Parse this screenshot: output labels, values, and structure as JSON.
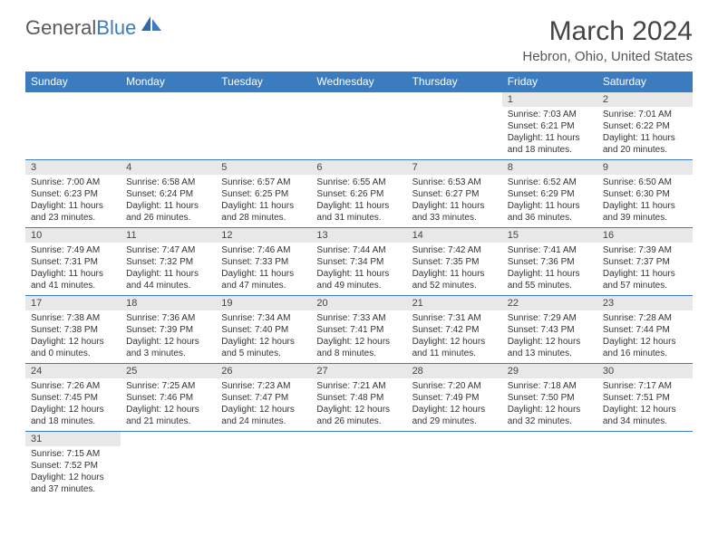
{
  "logo": {
    "general": "General",
    "blue": "Blue"
  },
  "title": "March 2024",
  "location": "Hebron, Ohio, United States",
  "colors": {
    "header_bg": "#3b7bbf",
    "header_text": "#ffffff",
    "daynum_bg": "#e8e8e8",
    "border": "#3b7bbf",
    "text": "#333333",
    "logo_gray": "#5a5a5a",
    "logo_blue": "#3b7bbf"
  },
  "weekdays": [
    "Sunday",
    "Monday",
    "Tuesday",
    "Wednesday",
    "Thursday",
    "Friday",
    "Saturday"
  ],
  "weeks": [
    [
      {
        "n": "",
        "sr": "",
        "ss": "",
        "d1": "",
        "d2": ""
      },
      {
        "n": "",
        "sr": "",
        "ss": "",
        "d1": "",
        "d2": ""
      },
      {
        "n": "",
        "sr": "",
        "ss": "",
        "d1": "",
        "d2": ""
      },
      {
        "n": "",
        "sr": "",
        "ss": "",
        "d1": "",
        "d2": ""
      },
      {
        "n": "",
        "sr": "",
        "ss": "",
        "d1": "",
        "d2": ""
      },
      {
        "n": "1",
        "sr": "Sunrise: 7:03 AM",
        "ss": "Sunset: 6:21 PM",
        "d1": "Daylight: 11 hours",
        "d2": "and 18 minutes."
      },
      {
        "n": "2",
        "sr": "Sunrise: 7:01 AM",
        "ss": "Sunset: 6:22 PM",
        "d1": "Daylight: 11 hours",
        "d2": "and 20 minutes."
      }
    ],
    [
      {
        "n": "3",
        "sr": "Sunrise: 7:00 AM",
        "ss": "Sunset: 6:23 PM",
        "d1": "Daylight: 11 hours",
        "d2": "and 23 minutes."
      },
      {
        "n": "4",
        "sr": "Sunrise: 6:58 AM",
        "ss": "Sunset: 6:24 PM",
        "d1": "Daylight: 11 hours",
        "d2": "and 26 minutes."
      },
      {
        "n": "5",
        "sr": "Sunrise: 6:57 AM",
        "ss": "Sunset: 6:25 PM",
        "d1": "Daylight: 11 hours",
        "d2": "and 28 minutes."
      },
      {
        "n": "6",
        "sr": "Sunrise: 6:55 AM",
        "ss": "Sunset: 6:26 PM",
        "d1": "Daylight: 11 hours",
        "d2": "and 31 minutes."
      },
      {
        "n": "7",
        "sr": "Sunrise: 6:53 AM",
        "ss": "Sunset: 6:27 PM",
        "d1": "Daylight: 11 hours",
        "d2": "and 33 minutes."
      },
      {
        "n": "8",
        "sr": "Sunrise: 6:52 AM",
        "ss": "Sunset: 6:29 PM",
        "d1": "Daylight: 11 hours",
        "d2": "and 36 minutes."
      },
      {
        "n": "9",
        "sr": "Sunrise: 6:50 AM",
        "ss": "Sunset: 6:30 PM",
        "d1": "Daylight: 11 hours",
        "d2": "and 39 minutes."
      }
    ],
    [
      {
        "n": "10",
        "sr": "Sunrise: 7:49 AM",
        "ss": "Sunset: 7:31 PM",
        "d1": "Daylight: 11 hours",
        "d2": "and 41 minutes."
      },
      {
        "n": "11",
        "sr": "Sunrise: 7:47 AM",
        "ss": "Sunset: 7:32 PM",
        "d1": "Daylight: 11 hours",
        "d2": "and 44 minutes."
      },
      {
        "n": "12",
        "sr": "Sunrise: 7:46 AM",
        "ss": "Sunset: 7:33 PM",
        "d1": "Daylight: 11 hours",
        "d2": "and 47 minutes."
      },
      {
        "n": "13",
        "sr": "Sunrise: 7:44 AM",
        "ss": "Sunset: 7:34 PM",
        "d1": "Daylight: 11 hours",
        "d2": "and 49 minutes."
      },
      {
        "n": "14",
        "sr": "Sunrise: 7:42 AM",
        "ss": "Sunset: 7:35 PM",
        "d1": "Daylight: 11 hours",
        "d2": "and 52 minutes."
      },
      {
        "n": "15",
        "sr": "Sunrise: 7:41 AM",
        "ss": "Sunset: 7:36 PM",
        "d1": "Daylight: 11 hours",
        "d2": "and 55 minutes."
      },
      {
        "n": "16",
        "sr": "Sunrise: 7:39 AM",
        "ss": "Sunset: 7:37 PM",
        "d1": "Daylight: 11 hours",
        "d2": "and 57 minutes."
      }
    ],
    [
      {
        "n": "17",
        "sr": "Sunrise: 7:38 AM",
        "ss": "Sunset: 7:38 PM",
        "d1": "Daylight: 12 hours",
        "d2": "and 0 minutes."
      },
      {
        "n": "18",
        "sr": "Sunrise: 7:36 AM",
        "ss": "Sunset: 7:39 PM",
        "d1": "Daylight: 12 hours",
        "d2": "and 3 minutes."
      },
      {
        "n": "19",
        "sr": "Sunrise: 7:34 AM",
        "ss": "Sunset: 7:40 PM",
        "d1": "Daylight: 12 hours",
        "d2": "and 5 minutes."
      },
      {
        "n": "20",
        "sr": "Sunrise: 7:33 AM",
        "ss": "Sunset: 7:41 PM",
        "d1": "Daylight: 12 hours",
        "d2": "and 8 minutes."
      },
      {
        "n": "21",
        "sr": "Sunrise: 7:31 AM",
        "ss": "Sunset: 7:42 PM",
        "d1": "Daylight: 12 hours",
        "d2": "and 11 minutes."
      },
      {
        "n": "22",
        "sr": "Sunrise: 7:29 AM",
        "ss": "Sunset: 7:43 PM",
        "d1": "Daylight: 12 hours",
        "d2": "and 13 minutes."
      },
      {
        "n": "23",
        "sr": "Sunrise: 7:28 AM",
        "ss": "Sunset: 7:44 PM",
        "d1": "Daylight: 12 hours",
        "d2": "and 16 minutes."
      }
    ],
    [
      {
        "n": "24",
        "sr": "Sunrise: 7:26 AM",
        "ss": "Sunset: 7:45 PM",
        "d1": "Daylight: 12 hours",
        "d2": "and 18 minutes."
      },
      {
        "n": "25",
        "sr": "Sunrise: 7:25 AM",
        "ss": "Sunset: 7:46 PM",
        "d1": "Daylight: 12 hours",
        "d2": "and 21 minutes."
      },
      {
        "n": "26",
        "sr": "Sunrise: 7:23 AM",
        "ss": "Sunset: 7:47 PM",
        "d1": "Daylight: 12 hours",
        "d2": "and 24 minutes."
      },
      {
        "n": "27",
        "sr": "Sunrise: 7:21 AM",
        "ss": "Sunset: 7:48 PM",
        "d1": "Daylight: 12 hours",
        "d2": "and 26 minutes."
      },
      {
        "n": "28",
        "sr": "Sunrise: 7:20 AM",
        "ss": "Sunset: 7:49 PM",
        "d1": "Daylight: 12 hours",
        "d2": "and 29 minutes."
      },
      {
        "n": "29",
        "sr": "Sunrise: 7:18 AM",
        "ss": "Sunset: 7:50 PM",
        "d1": "Daylight: 12 hours",
        "d2": "and 32 minutes."
      },
      {
        "n": "30",
        "sr": "Sunrise: 7:17 AM",
        "ss": "Sunset: 7:51 PM",
        "d1": "Daylight: 12 hours",
        "d2": "and 34 minutes."
      }
    ],
    [
      {
        "n": "31",
        "sr": "Sunrise: 7:15 AM",
        "ss": "Sunset: 7:52 PM",
        "d1": "Daylight: 12 hours",
        "d2": "and 37 minutes."
      },
      {
        "n": "",
        "sr": "",
        "ss": "",
        "d1": "",
        "d2": ""
      },
      {
        "n": "",
        "sr": "",
        "ss": "",
        "d1": "",
        "d2": ""
      },
      {
        "n": "",
        "sr": "",
        "ss": "",
        "d1": "",
        "d2": ""
      },
      {
        "n": "",
        "sr": "",
        "ss": "",
        "d1": "",
        "d2": ""
      },
      {
        "n": "",
        "sr": "",
        "ss": "",
        "d1": "",
        "d2": ""
      },
      {
        "n": "",
        "sr": "",
        "ss": "",
        "d1": "",
        "d2": ""
      }
    ]
  ]
}
